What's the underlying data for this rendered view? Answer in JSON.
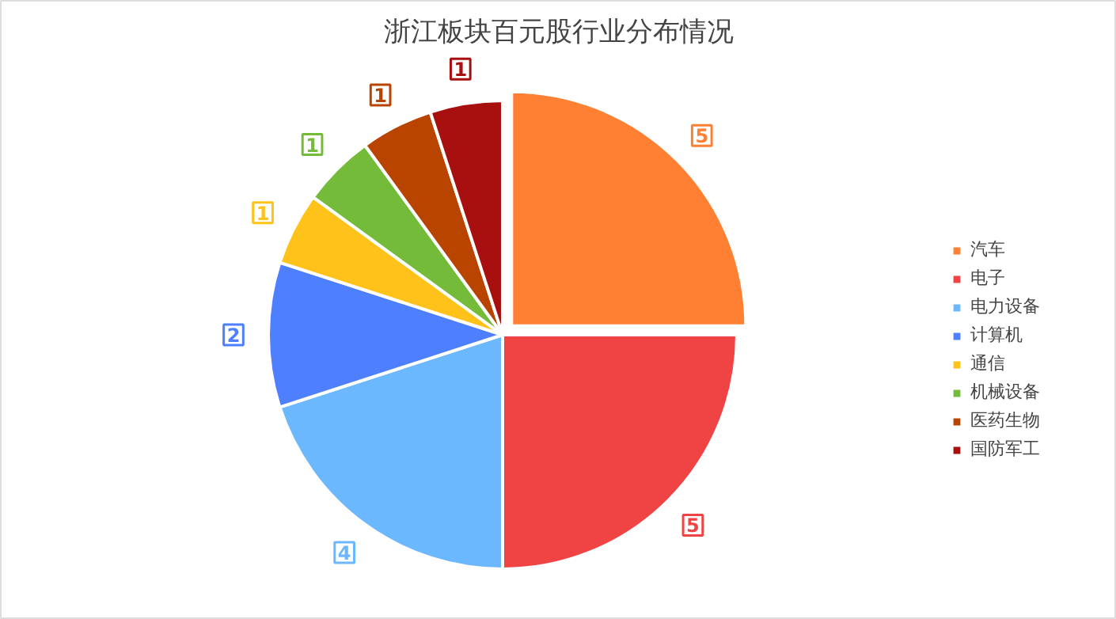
{
  "chart_data": {
    "type": "pie",
    "title": "浙江板块百元股行业分布情况",
    "categories": [
      "汽车",
      "电子",
      "电力设备",
      "计算机",
      "通信",
      "机械设备",
      "医药生物",
      "国防军工"
    ],
    "values": [
      5,
      5,
      4,
      2,
      1,
      1,
      1,
      1
    ],
    "colors": [
      "#ff8033",
      "#f04343",
      "#6cb8ff",
      "#4d7fff",
      "#ffc21a",
      "#74bb3a",
      "#b84400",
      "#a81010"
    ],
    "data_labels": true,
    "legend": "right"
  }
}
